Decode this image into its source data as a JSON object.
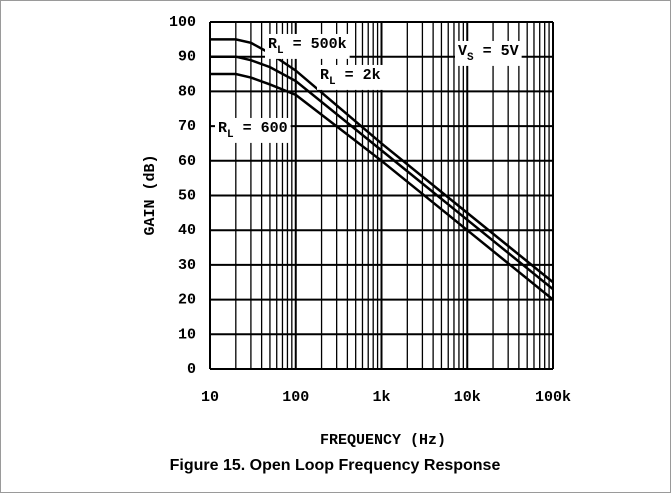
{
  "chart_data": {
    "type": "line",
    "title": "Figure 15. Open Loop Frequency Response",
    "x_label": "FREQUENCY (Hz)",
    "y_label": "GAIN (dB)",
    "x": [
      10,
      20,
      30,
      50,
      100,
      1000,
      10000,
      100000
    ],
    "series": [
      {
        "color": "#000000",
        "values": [
          95,
          95,
          94,
          91,
          86,
          65,
          45,
          25
        ]
      },
      {
        "color": "#000000",
        "values": [
          90,
          90,
          89,
          87,
          83,
          63,
          43,
          23
        ]
      },
      {
        "color": "#000000",
        "values": [
          85,
          85,
          84,
          82,
          79,
          60,
          40,
          20
        ]
      }
    ],
    "annotations": [
      {
        "text": "R",
        "sub": "L",
        "after": " = 500k"
      },
      {
        "text": "R",
        "sub": "L",
        "after": " = 2k"
      },
      {
        "text": "R",
        "sub": "L",
        "after": " = 600"
      },
      {
        "text": "V",
        "sub": "S",
        "after": " = 5V"
      }
    ],
    "xlog": true,
    "grid": true,
    "xlim": [
      10,
      100000
    ],
    "xticks": [
      10,
      100,
      {
        "value": 1000,
        "label": "1k"
      },
      {
        "value": 10000,
        "label": "10k"
      },
      {
        "value": 100000,
        "label": "100k"
      }
    ],
    "ylim": [
      0,
      100
    ],
    "yticks": [
      0,
      10,
      20,
      30,
      40,
      50,
      60,
      70,
      80,
      90,
      100
    ]
  }
}
